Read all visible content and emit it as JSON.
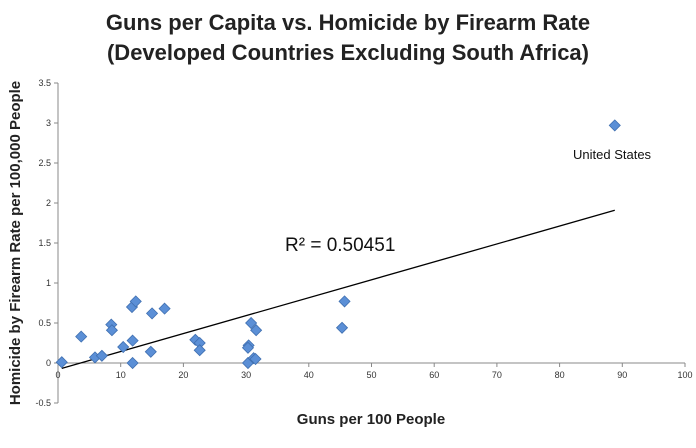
{
  "chart_data": {
    "type": "scatter",
    "title": "Guns per Capita vs. Homicide by Firearm Rate",
    "subtitle": "(Developed Countries Excluding South Africa)",
    "xlabel": "Guns per 100 People",
    "ylabel": "Homicide by Firearm Rate per 100,000 People",
    "xlim": [
      0,
      100
    ],
    "ylim": [
      -0.5,
      3.5
    ],
    "xticks": [
      0,
      10,
      20,
      30,
      40,
      50,
      60,
      70,
      80,
      90,
      100
    ],
    "yticks": [
      -0.5,
      0,
      0.5,
      1,
      1.5,
      2,
      2.5,
      3,
      3.5
    ],
    "grid": false,
    "marker_color": "#5b8fd6",
    "points": [
      [
        0.6,
        0.01
      ],
      [
        3.7,
        0.33
      ],
      [
        5.9,
        0.07
      ],
      [
        7,
        0.09
      ],
      [
        8.5,
        0.48
      ],
      [
        8.6,
        0.41
      ],
      [
        10.4,
        0.2
      ],
      [
        11.8,
        0.7
      ],
      [
        12.4,
        0.77
      ],
      [
        11.9,
        0.28
      ],
      [
        11.9,
        0.0
      ],
      [
        15,
        0.62
      ],
      [
        17,
        0.68
      ],
      [
        14.8,
        0.14
      ],
      [
        21.9,
        0.29
      ],
      [
        22.6,
        0.25
      ],
      [
        22.6,
        0.16
      ],
      [
        30.4,
        0.22
      ],
      [
        30.3,
        0.19
      ],
      [
        30.8,
        0.5
      ],
      [
        31.6,
        0.41
      ],
      [
        30.3,
        0.0
      ],
      [
        31.2,
        0.06
      ],
      [
        31.5,
        0.05
      ],
      [
        45.7,
        0.77
      ],
      [
        45.3,
        0.44
      ],
      [
        88.8,
        2.97
      ]
    ],
    "trendline": {
      "slope": 0.0224,
      "intercept": -0.08,
      "x_range": [
        0.6,
        88.8
      ]
    },
    "annotations": {
      "r2": "R² = 0.50451",
      "us": "United States"
    }
  }
}
